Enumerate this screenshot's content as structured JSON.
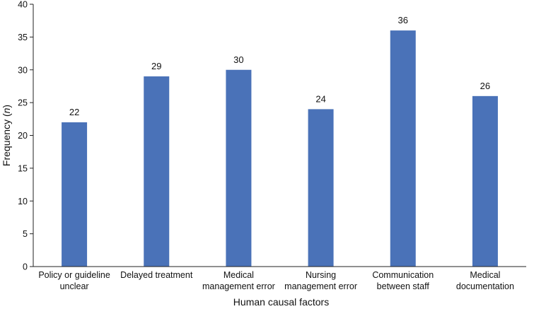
{
  "chart_data": {
    "type": "bar",
    "categories": [
      [
        "Policy or guideline",
        "unclear"
      ],
      [
        "Delayed treatment"
      ],
      [
        "Medical",
        "management error"
      ],
      [
        "Nursing",
        "management error"
      ],
      [
        "Communication",
        "between staff"
      ],
      [
        "Medical",
        "documentation"
      ]
    ],
    "values": [
      22,
      29,
      30,
      24,
      36,
      26
    ],
    "data_labels": [
      "22",
      "29",
      "30",
      "24",
      "36",
      "26"
    ],
    "xlabel": "Human causal factors",
    "ylabel": {
      "prefix": "Frequency (",
      "italic": "n",
      "suffix": ")"
    },
    "ylim": [
      0,
      40
    ],
    "yticks": [
      0,
      5,
      10,
      15,
      20,
      25,
      30,
      35,
      40
    ],
    "bar_color": "#4a72b8",
    "grid": false,
    "legend": "none"
  }
}
